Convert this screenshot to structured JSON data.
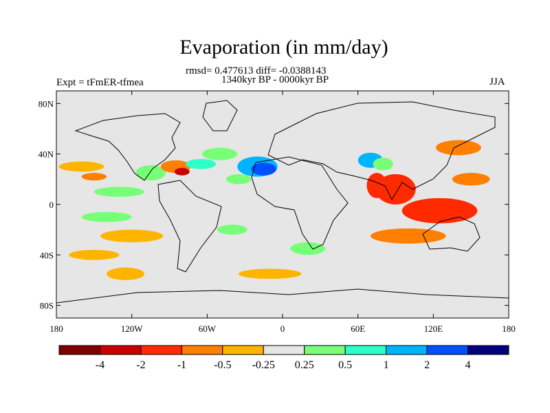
{
  "title": "Evaporation (in mm/day)",
  "stats_line": "rmsd= 0.477613 diff= -0.0388143",
  "period_line": "1340kyr BP - 0000kyr BP",
  "expt_label": "Expt = tFmER-tfmea",
  "season_label": "JJA",
  "map": {
    "lon_range": [
      -180,
      180
    ],
    "lat_range": [
      -90,
      90
    ],
    "x_ticks": [
      {
        "lon": -180,
        "label": "180"
      },
      {
        "lon": -120,
        "label": "120W"
      },
      {
        "lon": -60,
        "label": "60W"
      },
      {
        "lon": 0,
        "label": "0"
      },
      {
        "lon": 60,
        "label": "60E"
      },
      {
        "lon": 120,
        "label": "120E"
      },
      {
        "lon": 180,
        "label": "180"
      }
    ],
    "y_ticks": [
      {
        "lat": 80,
        "label": "80N"
      },
      {
        "lat": 40,
        "label": "40N"
      },
      {
        "lat": 0,
        "label": "0"
      },
      {
        "lat": -40,
        "label": "40S"
      },
      {
        "lat": -80,
        "label": "80S"
      }
    ],
    "background_color": "#e6e6e6"
  },
  "colorbar": {
    "colors": [
      "#800000",
      "#c80000",
      "#ff2a00",
      "#ff7f00",
      "#ffb400",
      "#e6e6e6",
      "#78ff78",
      "#2dffc8",
      "#00b4ff",
      "#0050ff",
      "#000080"
    ],
    "labels": [
      "-4",
      "-2",
      "-1",
      "-0.5",
      "-0.25",
      "0.25",
      "0.5",
      "1",
      "2",
      "4"
    ]
  },
  "anomaly_regions": [
    {
      "lon": -160,
      "lat": 30,
      "rlon": 18,
      "rlat": 4,
      "color": "#ffb400"
    },
    {
      "lon": -150,
      "lat": 22,
      "rlon": 10,
      "rlat": 3,
      "color": "#ff7f00"
    },
    {
      "lon": -130,
      "lat": 10,
      "rlon": 20,
      "rlat": 4,
      "color": "#78ff78"
    },
    {
      "lon": -105,
      "lat": 25,
      "rlon": 12,
      "rlat": 6,
      "color": "#78ff78"
    },
    {
      "lon": -85,
      "lat": 30,
      "rlon": 12,
      "rlat": 5,
      "color": "#ff7f00"
    },
    {
      "lon": -80,
      "lat": 26,
      "rlon": 6,
      "rlat": 3,
      "color": "#c80000"
    },
    {
      "lon": -65,
      "lat": 32,
      "rlon": 12,
      "rlat": 4,
      "color": "#2dffc8"
    },
    {
      "lon": -50,
      "lat": 40,
      "rlon": 14,
      "rlat": 5,
      "color": "#78ff78"
    },
    {
      "lon": -20,
      "lat": 30,
      "rlon": 16,
      "rlat": 8,
      "color": "#00b4ff"
    },
    {
      "lon": -15,
      "lat": 28,
      "rlon": 10,
      "rlat": 5,
      "color": "#0050ff"
    },
    {
      "lon": -35,
      "lat": 20,
      "rlon": 10,
      "rlat": 4,
      "color": "#78ff78"
    },
    {
      "lon": 90,
      "lat": 12,
      "rlon": 16,
      "rlat": 12,
      "color": "#ff2a00"
    },
    {
      "lon": 75,
      "lat": 15,
      "rlon": 8,
      "rlat": 10,
      "color": "#ff2a00"
    },
    {
      "lon": 70,
      "lat": 35,
      "rlon": 10,
      "rlat": 6,
      "color": "#00b4ff"
    },
    {
      "lon": 80,
      "lat": 32,
      "rlon": 8,
      "rlat": 5,
      "color": "#78ff78"
    },
    {
      "lon": 125,
      "lat": -5,
      "rlon": 30,
      "rlat": 10,
      "color": "#ff2a00"
    },
    {
      "lon": 150,
      "lat": 20,
      "rlon": 15,
      "rlat": 5,
      "color": "#ff7f00"
    },
    {
      "lon": 140,
      "lat": 45,
      "rlon": 18,
      "rlat": 6,
      "color": "#ff7f00"
    },
    {
      "lon": 100,
      "lat": -25,
      "rlon": 30,
      "rlat": 6,
      "color": "#ff7f00"
    },
    {
      "lon": -140,
      "lat": -10,
      "rlon": 20,
      "rlat": 4,
      "color": "#78ff78"
    },
    {
      "lon": -120,
      "lat": -25,
      "rlon": 25,
      "rlat": 5,
      "color": "#ffb400"
    },
    {
      "lon": -150,
      "lat": -40,
      "rlon": 20,
      "rlat": 4,
      "color": "#ffb400"
    },
    {
      "lon": -125,
      "lat": -55,
      "rlon": 15,
      "rlat": 5,
      "color": "#ffb400"
    },
    {
      "lon": -10,
      "lat": -55,
      "rlon": 25,
      "rlat": 4,
      "color": "#ffb400"
    },
    {
      "lon": 20,
      "lat": -35,
      "rlon": 14,
      "rlat": 5,
      "color": "#78ff78"
    },
    {
      "lon": -40,
      "lat": -20,
      "rlon": 12,
      "rlat": 4,
      "color": "#78ff78"
    }
  ]
}
